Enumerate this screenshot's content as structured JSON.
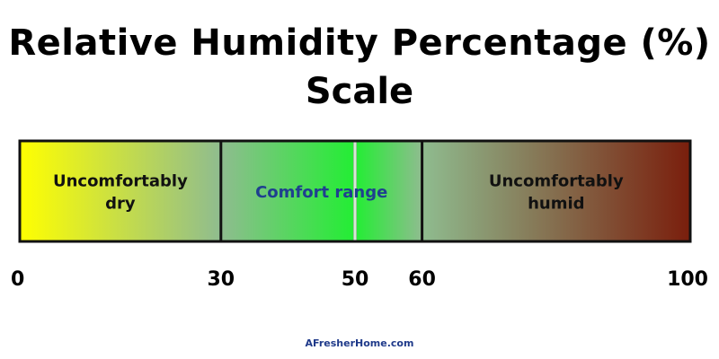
{
  "title_line1": "Relative Humidity Percentage (%)",
  "title_line2": "Scale",
  "footer": "AFresherHome.com",
  "chart_data": {
    "type": "range-scale",
    "title": "Relative Humidity Percentage (%) Scale",
    "xlim": [
      0,
      100
    ],
    "ticks": [
      0,
      30,
      50,
      60,
      100
    ],
    "ranges": [
      {
        "label_lines": [
          "Uncomfortably",
          "dry"
        ],
        "from": 0,
        "to": 30,
        "label_color": "#111111"
      },
      {
        "label_lines": [
          "Comfort range"
        ],
        "from": 30,
        "to": 60,
        "label_color": "#1f3f8f"
      },
      {
        "label_lines": [
          "Uncomfortably",
          "humid"
        ],
        "from": 60,
        "to": 100,
        "label_color": "#111111"
      }
    ],
    "marker": 50,
    "gradient": [
      {
        "at": 0,
        "color": "#ffff00"
      },
      {
        "at": 30,
        "color": "#8fbc8f"
      },
      {
        "at": 50,
        "color": "#22ee33"
      },
      {
        "at": 60,
        "color": "#8fbc8f"
      },
      {
        "at": 100,
        "color": "#7a1e0c"
      }
    ]
  }
}
